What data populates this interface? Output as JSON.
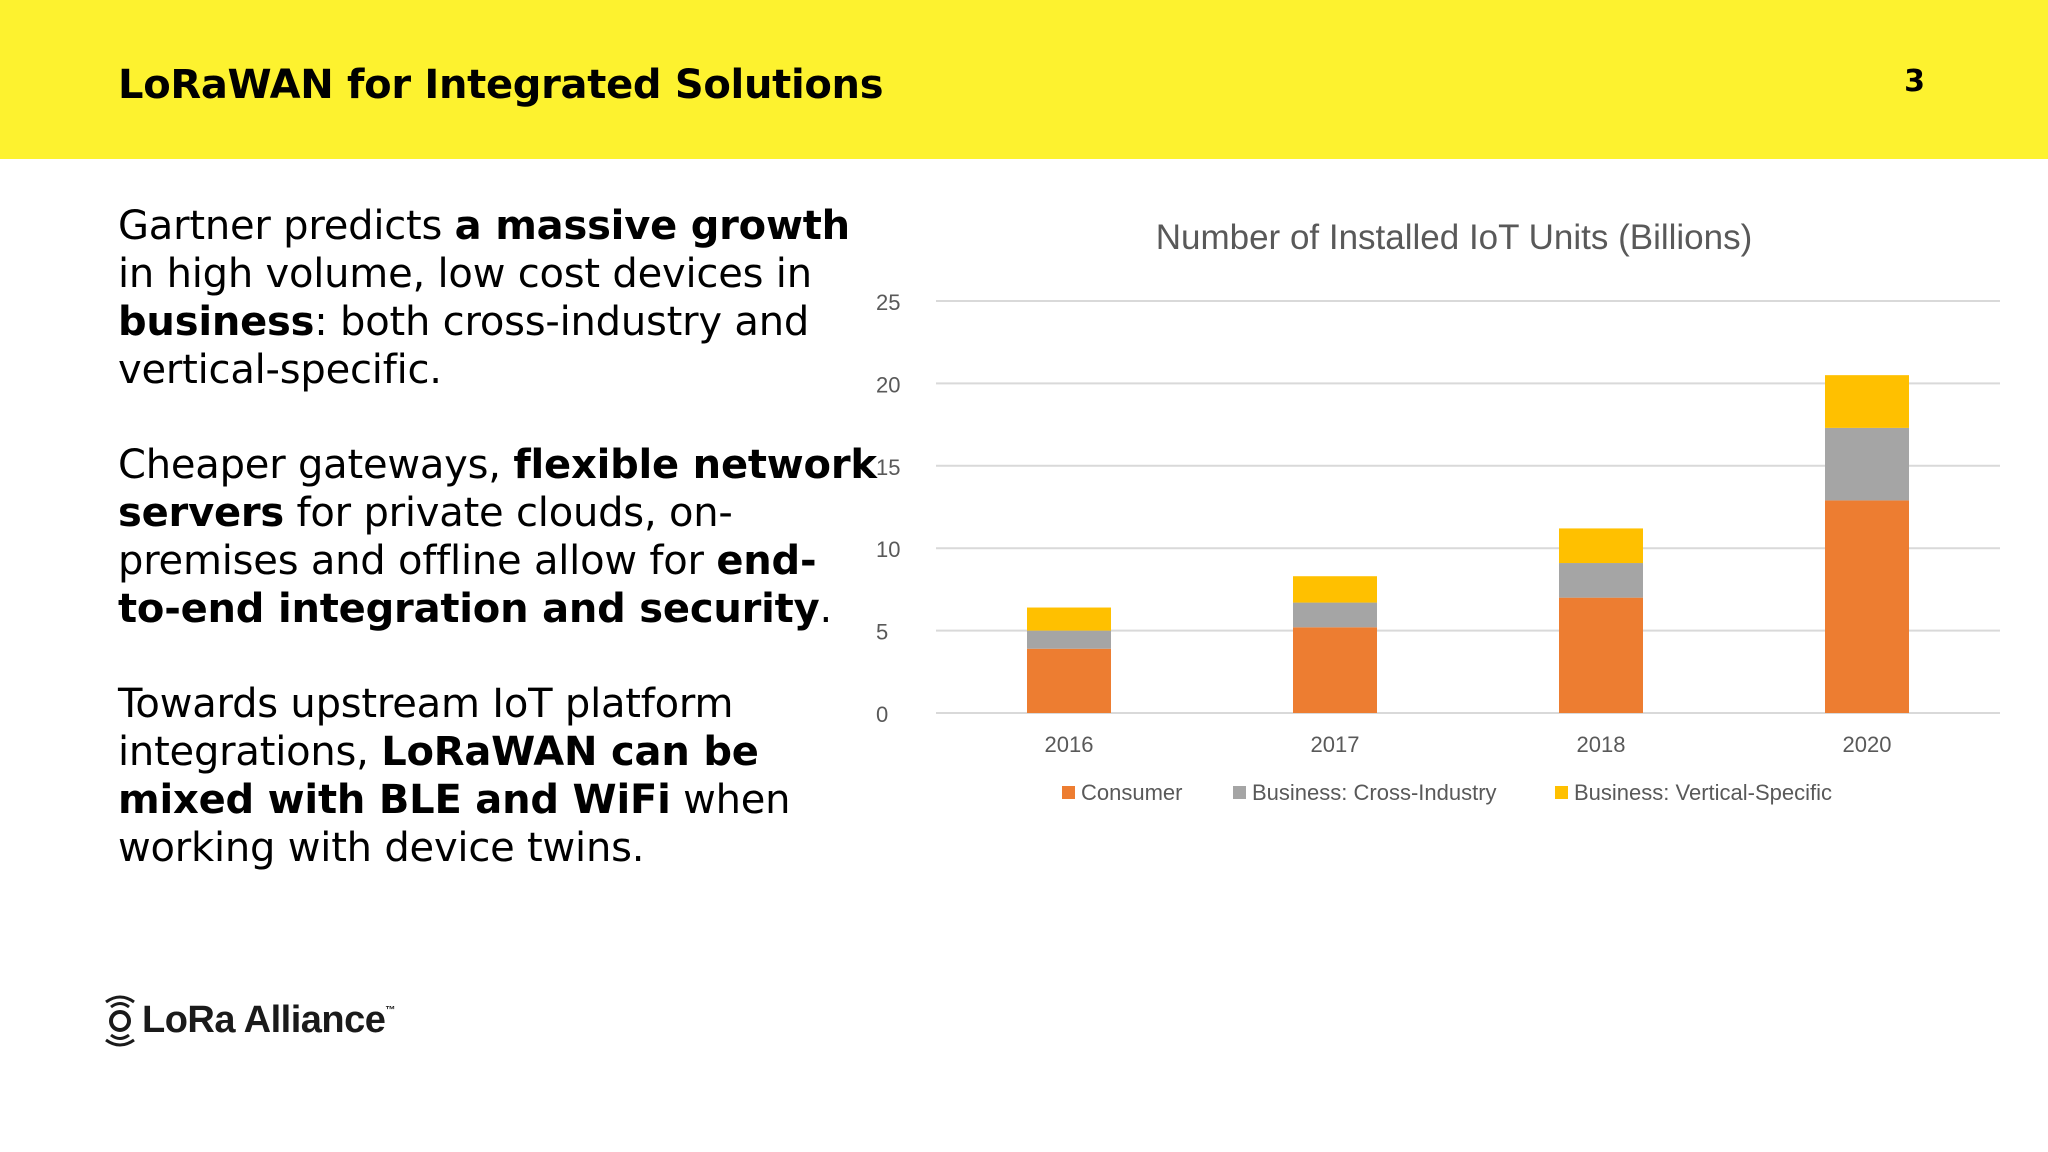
{
  "header": {
    "title": "LoRaWAN for Integrated Solutions",
    "page_number": "3"
  },
  "body": {
    "p1": {
      "a": "Gartner predicts ",
      "b": "a massive growth",
      "c": " in high volume, low cost devices in ",
      "d": "business",
      "e": ": both cross-industry and vertical-specific."
    },
    "p2": {
      "a": "Cheaper gateways, ",
      "b": "flexible network servers",
      "c": " for private clouds, on-premises and offline allow for ",
      "d": "end-to-end integration and security",
      "e": "."
    },
    "p3": {
      "a": "Towards upstream IoT platform integrations, ",
      "b": "LoRaWAN can be mixed with BLE and WiFi",
      "c": " when working with device twins."
    }
  },
  "logo": {
    "text": "LoRa Alliance",
    "tm": "™"
  },
  "colors": {
    "header_bg": "#fdf22f",
    "consumer": "#ed7d31",
    "cross_industry": "#a5a5a5",
    "vertical_specific": "#ffc000"
  },
  "chart_data": {
    "type": "bar",
    "stacked": true,
    "title": "Number of Installed IoT Units (Billions)",
    "categories": [
      "2016",
      "2017",
      "2018",
      "2020"
    ],
    "series": [
      {
        "name": "Consumer",
        "values": [
          3.9,
          5.2,
          7.0,
          12.9
        ]
      },
      {
        "name": "Business: Cross-Industry",
        "values": [
          1.1,
          1.5,
          2.1,
          4.4
        ]
      },
      {
        "name": "Business: Vertical-Specific",
        "values": [
          1.4,
          1.6,
          2.1,
          3.2
        ]
      }
    ],
    "ylim": [
      0,
      25
    ],
    "yticks": [
      "0",
      "5",
      "10",
      "15",
      "20",
      "25"
    ],
    "xlabel": "",
    "ylabel": "",
    "grid": true,
    "legend": "bottom"
  }
}
